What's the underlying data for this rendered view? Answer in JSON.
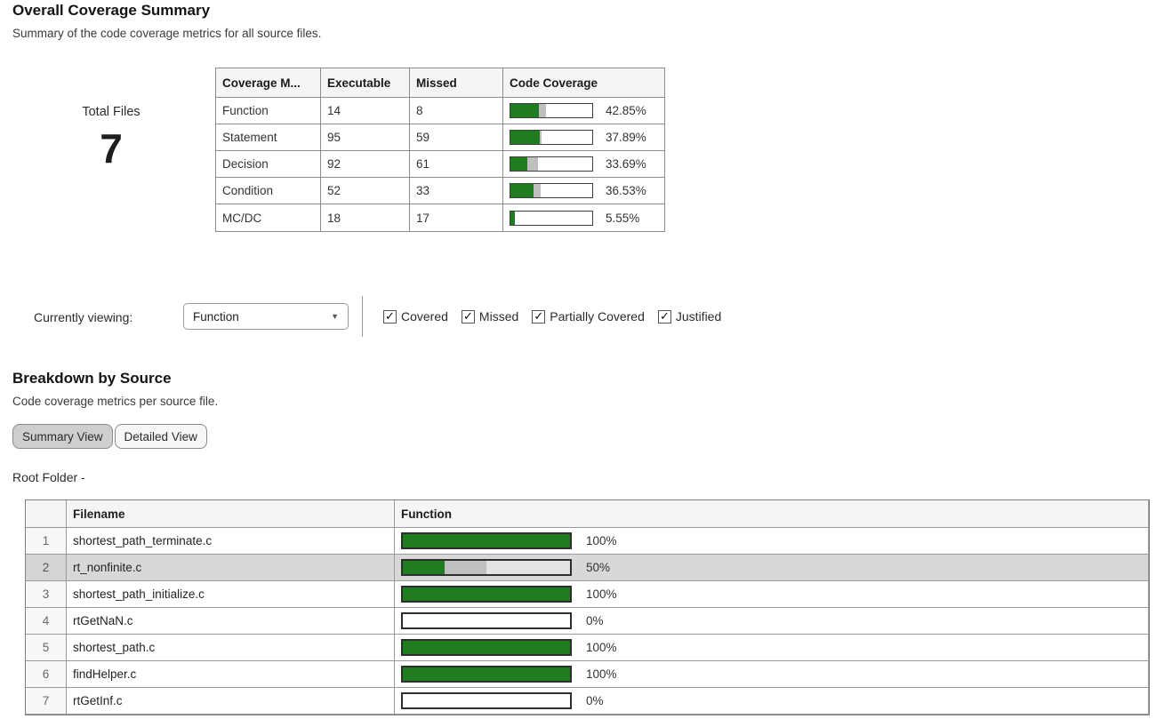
{
  "colors": {
    "covered": "#1f7d1f",
    "partial": "#bfbfbf"
  },
  "overall": {
    "title": "Overall Coverage Summary",
    "subtitle": "Summary of the code coverage metrics for all source files.",
    "total_files_label": "Total Files",
    "total_files_value": "7",
    "table": {
      "headers": [
        "Coverage M...",
        "Executable",
        "Missed",
        "Code Coverage"
      ],
      "rows": [
        {
          "metric": "Function",
          "executable": "14",
          "missed": "8",
          "pct_label": "42.85%",
          "covered_pct": 35,
          "partial_pct": 8
        },
        {
          "metric": "Statement",
          "executable": "95",
          "missed": "59",
          "pct_label": "37.89%",
          "covered_pct": 36,
          "partial_pct": 2
        },
        {
          "metric": "Decision",
          "executable": "92",
          "missed": "61",
          "pct_label": "33.69%",
          "covered_pct": 21,
          "partial_pct": 13
        },
        {
          "metric": "Condition",
          "executable": "52",
          "missed": "33",
          "pct_label": "36.53%",
          "covered_pct": 28,
          "partial_pct": 9
        },
        {
          "metric": "MC/DC",
          "executable": "18",
          "missed": "17",
          "pct_label": "5.55%",
          "covered_pct": 5.5,
          "partial_pct": 0
        }
      ]
    }
  },
  "filter_bar": {
    "label": "Currently viewing:",
    "dropdown_value": "Function",
    "dropdown_arrow": "▼",
    "checkmark": "✓",
    "checkboxes": [
      {
        "label": "Covered",
        "checked": true
      },
      {
        "label": "Missed",
        "checked": true
      },
      {
        "label": "Partially Covered",
        "checked": true
      },
      {
        "label": "Justified",
        "checked": true
      }
    ]
  },
  "breakdown": {
    "title": "Breakdown by Source",
    "subtitle": "Code coverage metrics per source file.",
    "view_buttons": [
      {
        "label": "Summary View",
        "active": true
      },
      {
        "label": "Detailed View",
        "active": false
      }
    ],
    "root_folder_label": "Root Folder -",
    "table": {
      "headers": [
        "",
        "Filename",
        "Function"
      ],
      "rows": [
        {
          "num": "1",
          "filename": "shortest_path_terminate.c",
          "pct_label": "100%",
          "covered_pct": 100,
          "partial_pct": 0,
          "highlighted": false
        },
        {
          "num": "2",
          "filename": "rt_nonfinite.c",
          "pct_label": "50%",
          "covered_pct": 25,
          "partial_pct": 25,
          "highlighted": true
        },
        {
          "num": "3",
          "filename": "shortest_path_initialize.c",
          "pct_label": "100%",
          "covered_pct": 100,
          "partial_pct": 0,
          "highlighted": false
        },
        {
          "num": "4",
          "filename": "rtGetNaN.c",
          "pct_label": "0%",
          "covered_pct": 0,
          "partial_pct": 0,
          "highlighted": false
        },
        {
          "num": "5",
          "filename": "shortest_path.c",
          "pct_label": "100%",
          "covered_pct": 100,
          "partial_pct": 0,
          "highlighted": false
        },
        {
          "num": "6",
          "filename": "findHelper.c",
          "pct_label": "100%",
          "covered_pct": 100,
          "partial_pct": 0,
          "highlighted": false
        },
        {
          "num": "7",
          "filename": "rtGetInf.c",
          "pct_label": "0%",
          "covered_pct": 0,
          "partial_pct": 0,
          "highlighted": false
        }
      ]
    }
  }
}
